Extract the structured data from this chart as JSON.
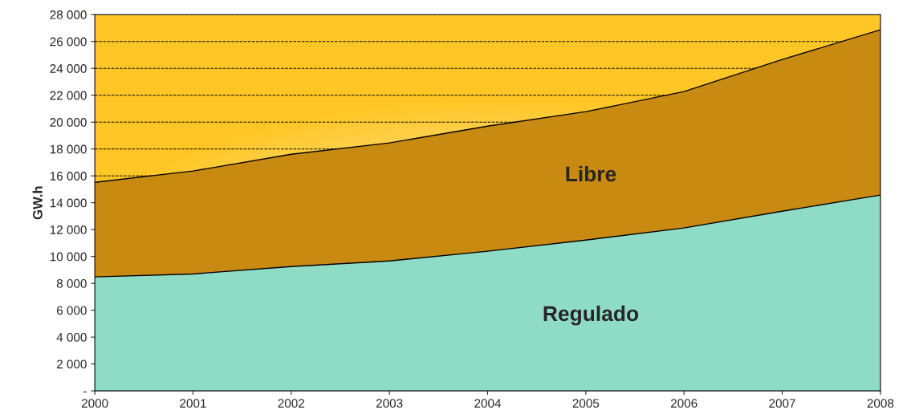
{
  "chart_data": {
    "type": "area",
    "stacked": true,
    "ylabel": "GW.h",
    "x": [
      2000,
      2001,
      2002,
      2003,
      2004,
      2005,
      2006,
      2007,
      2008
    ],
    "series": [
      {
        "name": "Regulado",
        "color": "#8fdcc6",
        "values": [
          8480,
          8700,
          9250,
          9670,
          10390,
          11220,
          12120,
          13370,
          14570
        ]
      },
      {
        "name": "Libre",
        "color": "#c98a12",
        "values": [
          7040,
          7660,
          8360,
          8780,
          9310,
          9560,
          10150,
          11290,
          12300
        ]
      }
    ],
    "xlim": [
      2000,
      2008
    ],
    "xticks": [
      2000,
      2001,
      2002,
      2003,
      2004,
      2005,
      2006,
      2007,
      2008
    ],
    "ylim": [
      0,
      28000
    ],
    "yticks": [
      {
        "value": 0,
        "label": "-"
      },
      {
        "value": 2000,
        "label": "2 000"
      },
      {
        "value": 4000,
        "label": "4 000"
      },
      {
        "value": 6000,
        "label": "6 000"
      },
      {
        "value": 8000,
        "label": "8 000"
      },
      {
        "value": 10000,
        "label": "10 000"
      },
      {
        "value": 12000,
        "label": "12 000"
      },
      {
        "value": 14000,
        "label": "14 000"
      },
      {
        "value": 16000,
        "label": "16 000"
      },
      {
        "value": 18000,
        "label": "18 000"
      },
      {
        "value": 20000,
        "label": "20 000"
      },
      {
        "value": 22000,
        "label": "22 000"
      },
      {
        "value": 24000,
        "label": "24 000"
      },
      {
        "value": 26000,
        "label": "26 000"
      },
      {
        "value": 28000,
        "label": "28 000"
      }
    ],
    "grid": "y",
    "legend": false
  }
}
